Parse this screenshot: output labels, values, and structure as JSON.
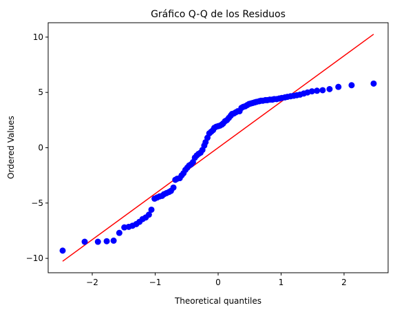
{
  "chart_data": {
    "type": "scatter",
    "title": "Gráfico Q-Q de los Residuos",
    "xlabel": "Theoretical quantiles",
    "ylabel": "Ordered Values",
    "xlim": [
      -2.7,
      2.7
    ],
    "ylim": [
      -11.3,
      11.3
    ],
    "x_ticks": [
      -2,
      -1,
      0,
      1,
      2
    ],
    "x_tick_labels": [
      "−2",
      "−1",
      "0",
      "1",
      "2"
    ],
    "y_ticks": [
      -10,
      -5,
      0,
      5,
      10
    ],
    "y_tick_labels": [
      "−10",
      "−5",
      "0",
      "5",
      "10"
    ],
    "grid": false,
    "colors": {
      "points": "#0000ff",
      "line": "#ff0000"
    },
    "series": [
      {
        "kind": "points",
        "x": [
          -2.47,
          -2.12,
          -1.91,
          -1.77,
          -1.66,
          -1.57,
          -1.49,
          -1.42,
          -1.36,
          -1.3,
          -1.25,
          -1.2,
          -1.15,
          -1.1,
          -1.06,
          -1.01,
          -0.97,
          -0.93,
          -0.89,
          -0.86,
          -0.82,
          -0.78,
          -0.75,
          -0.71,
          -0.68,
          -0.65,
          -0.61,
          -0.58,
          -0.55,
          -0.52,
          -0.49,
          -0.46,
          -0.43,
          -0.4,
          -0.37,
          -0.34,
          -0.31,
          -0.28,
          -0.25,
          -0.22,
          -0.2,
          -0.17,
          -0.14,
          -0.11,
          -0.08,
          -0.06,
          -0.03,
          0.0,
          0.03,
          0.06,
          0.08,
          0.11,
          0.14,
          0.17,
          0.2,
          0.22,
          0.25,
          0.28,
          0.31,
          0.34,
          0.37,
          0.4,
          0.43,
          0.46,
          0.49,
          0.52,
          0.55,
          0.58,
          0.61,
          0.65,
          0.68,
          0.71,
          0.75,
          0.78,
          0.82,
          0.86,
          0.89,
          0.93,
          0.97,
          1.01,
          1.06,
          1.1,
          1.15,
          1.2,
          1.25,
          1.3,
          1.36,
          1.42,
          1.49,
          1.57,
          1.66,
          1.77,
          1.91,
          2.12,
          2.47
        ],
        "y": [
          -9.3,
          -8.5,
          -8.5,
          -8.45,
          -8.4,
          -7.7,
          -7.2,
          -7.15,
          -7.05,
          -6.9,
          -6.7,
          -6.45,
          -6.3,
          -6.05,
          -5.6,
          -4.6,
          -4.5,
          -4.4,
          -4.35,
          -4.2,
          -4.1,
          -4.0,
          -3.9,
          -3.6,
          -2.9,
          -2.8,
          -2.75,
          -2.5,
          -2.3,
          -2.0,
          -1.8,
          -1.6,
          -1.5,
          -1.3,
          -0.9,
          -0.7,
          -0.55,
          -0.45,
          -0.2,
          0.2,
          0.5,
          0.9,
          1.3,
          1.45,
          1.6,
          1.8,
          1.9,
          1.95,
          2.0,
          2.1,
          2.2,
          2.4,
          2.5,
          2.7,
          2.9,
          3.05,
          3.1,
          3.2,
          3.3,
          3.3,
          3.6,
          3.7,
          3.75,
          3.85,
          3.95,
          4.0,
          4.05,
          4.1,
          4.15,
          4.2,
          4.25,
          4.25,
          4.3,
          4.3,
          4.35,
          4.35,
          4.4,
          4.4,
          4.45,
          4.5,
          4.55,
          4.6,
          4.65,
          4.7,
          4.75,
          4.8,
          4.9,
          5.0,
          5.1,
          5.15,
          5.2,
          5.3,
          5.5,
          5.65,
          5.8
        ]
      },
      {
        "kind": "line",
        "x": [
          -2.47,
          2.47
        ],
        "y": [
          -10.26,
          10.26
        ]
      }
    ]
  }
}
